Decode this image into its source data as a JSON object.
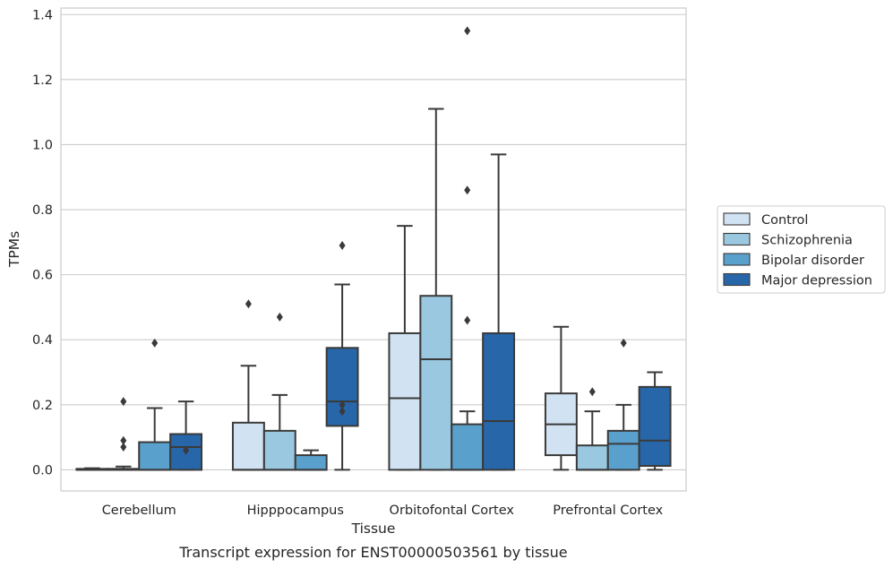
{
  "caption": "Transcript expression for ENST00000503561 by tissue",
  "chart_data": {
    "type": "box",
    "xlabel": "Tissue",
    "ylabel": "TPMs",
    "ylim": [
      -0.065,
      1.42
    ],
    "yticks": [
      "0.0",
      "0.2",
      "0.4",
      "0.6",
      "0.8",
      "1.0",
      "1.2",
      "1.4"
    ],
    "ytick_values": [
      0.0,
      0.2,
      0.4,
      0.6,
      0.8,
      1.0,
      1.2,
      1.4
    ],
    "grid": "horizontal",
    "legend_position": "right",
    "categories": [
      "Cerebellum",
      "Hipppocampus",
      "Orbitofontal Cortex",
      "Prefrontal Cortex"
    ],
    "series": [
      {
        "name": "Control",
        "color": "#d1e2f2",
        "boxes": [
          {
            "whislo": 0.0,
            "q1": 0.0,
            "med": 0.0,
            "q3": 0.003,
            "whishi": 0.005,
            "fliers": []
          },
          {
            "whislo": 0.0,
            "q1": 0.0,
            "med": 0.0,
            "q3": 0.145,
            "whishi": 0.32,
            "fliers": [
              0.51
            ]
          },
          {
            "whislo": 0.0,
            "q1": 0.0,
            "med": 0.22,
            "q3": 0.42,
            "whishi": 0.75,
            "fliers": []
          },
          {
            "whislo": 0.0,
            "q1": 0.045,
            "med": 0.14,
            "q3": 0.235,
            "whishi": 0.44,
            "fliers": []
          }
        ]
      },
      {
        "name": "Schizophrenia",
        "color": "#9ac8e0",
        "boxes": [
          {
            "whislo": 0.0,
            "q1": 0.0,
            "med": 0.0,
            "q3": 0.003,
            "whishi": 0.01,
            "fliers": [
              0.21,
              0.09,
              0.07
            ]
          },
          {
            "whislo": 0.0,
            "q1": 0.0,
            "med": 0.0,
            "q3": 0.12,
            "whishi": 0.23,
            "fliers": [
              0.47
            ]
          },
          {
            "whislo": 0.0,
            "q1": 0.0,
            "med": 0.34,
            "q3": 0.535,
            "whishi": 1.11,
            "fliers": []
          },
          {
            "whislo": 0.0,
            "q1": 0.0,
            "med": 0.0,
            "q3": 0.075,
            "whishi": 0.18,
            "fliers": [
              0.24
            ]
          }
        ]
      },
      {
        "name": "Bipolar disorder",
        "color": "#5aa0cd",
        "boxes": [
          {
            "whislo": 0.0,
            "q1": 0.0,
            "med": 0.0,
            "q3": 0.085,
            "whishi": 0.19,
            "fliers": [
              0.39
            ]
          },
          {
            "whislo": 0.0,
            "q1": 0.0,
            "med": 0.0,
            "q3": 0.045,
            "whishi": 0.06,
            "fliers": []
          },
          {
            "whislo": 0.0,
            "q1": 0.0,
            "med": 0.0,
            "q3": 0.14,
            "whishi": 0.18,
            "fliers": [
              1.35,
              0.86,
              0.46
            ]
          },
          {
            "whislo": 0.0,
            "q1": 0.0,
            "med": 0.08,
            "q3": 0.12,
            "whishi": 0.2,
            "fliers": [
              0.39
            ]
          }
        ]
      },
      {
        "name": "Major depression",
        "color": "#2766a9",
        "boxes": [
          {
            "whislo": 0.0,
            "q1": 0.0,
            "med": 0.07,
            "q3": 0.11,
            "whishi": 0.21,
            "fliers": [
              0.06
            ]
          },
          {
            "whislo": 0.0,
            "q1": 0.135,
            "med": 0.21,
            "q3": 0.375,
            "whishi": 0.57,
            "fliers": [
              0.69,
              0.2,
              0.18
            ]
          },
          {
            "whislo": 0.0,
            "q1": 0.0,
            "med": 0.15,
            "q3": 0.42,
            "whishi": 0.97,
            "fliers": []
          },
          {
            "whislo": 0.0,
            "q1": 0.012,
            "med": 0.09,
            "q3": 0.255,
            "whishi": 0.3,
            "fliers": []
          }
        ]
      }
    ]
  }
}
